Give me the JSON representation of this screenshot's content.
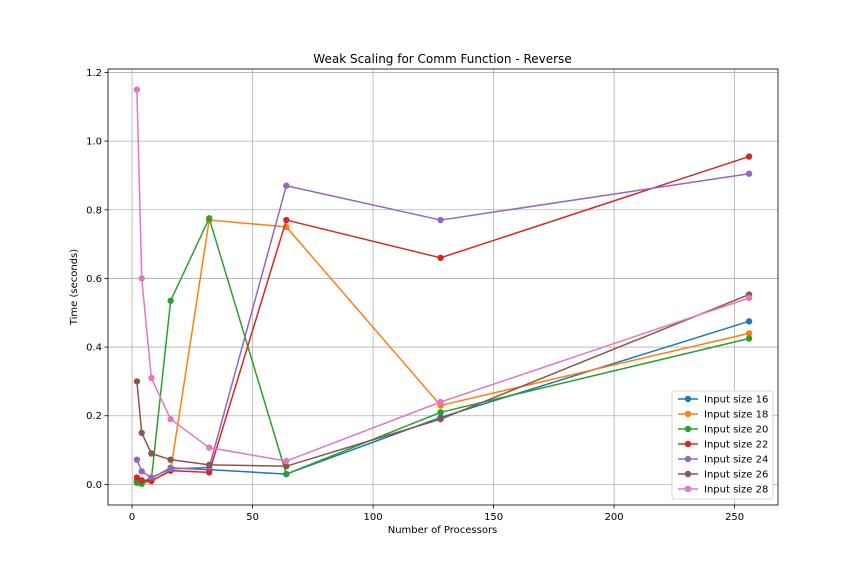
{
  "chart_data": {
    "type": "line",
    "title": "Weak Scaling for Comm Function - Reverse",
    "xlabel": "Number of Processors",
    "ylabel": "Time (seconds)",
    "xlim": [
      -10,
      268
    ],
    "ylim": [
      -0.06,
      1.21
    ],
    "xticks": [
      0,
      50,
      100,
      150,
      200,
      250
    ],
    "yticks": [
      0.0,
      0.2,
      0.4,
      0.6,
      0.8,
      1.0,
      1.2
    ],
    "xtick_labels": [
      "0",
      "50",
      "100",
      "150",
      "200",
      "250"
    ],
    "ytick_labels": [
      "0.0",
      "0.2",
      "0.4",
      "0.6",
      "0.8",
      "1.0",
      "1.2"
    ],
    "grid": true,
    "legend_position": "lower-right",
    "x": [
      2,
      4,
      8,
      16,
      32,
      64,
      128,
      256
    ],
    "series": [
      {
        "name": "Input size 16",
        "color": "#1f77b4",
        "values": [
          0.012,
          0.008,
          0.018,
          0.048,
          0.043,
          0.03,
          0.195,
          0.475
        ]
      },
      {
        "name": "Input size 18",
        "color": "#ff7f0e",
        "values": [
          0.005,
          0.003,
          0.01,
          0.04,
          0.77,
          0.75,
          0.23,
          0.44
        ]
      },
      {
        "name": "Input size 20",
        "color": "#2ca02c",
        "values": [
          0.005,
          0.002,
          0.015,
          0.535,
          0.775,
          0.03,
          0.21,
          0.425
        ]
      },
      {
        "name": "Input size 22",
        "color": "#d62728",
        "values": [
          0.02,
          0.012,
          0.01,
          0.04,
          0.035,
          0.77,
          0.66,
          0.955
        ]
      },
      {
        "name": "Input size 24",
        "color": "#9467bd",
        "values": [
          0.072,
          0.038,
          0.02,
          0.045,
          0.05,
          0.87,
          0.77,
          0.905
        ]
      },
      {
        "name": "Input size 26",
        "color": "#8c564b",
        "values": [
          0.3,
          0.15,
          0.09,
          0.072,
          0.057,
          0.053,
          0.19,
          0.553
        ]
      },
      {
        "name": "Input size 28",
        "color": "#e377c2",
        "values": [
          1.15,
          0.6,
          0.31,
          0.19,
          0.107,
          0.068,
          0.24,
          0.543
        ]
      }
    ]
  }
}
